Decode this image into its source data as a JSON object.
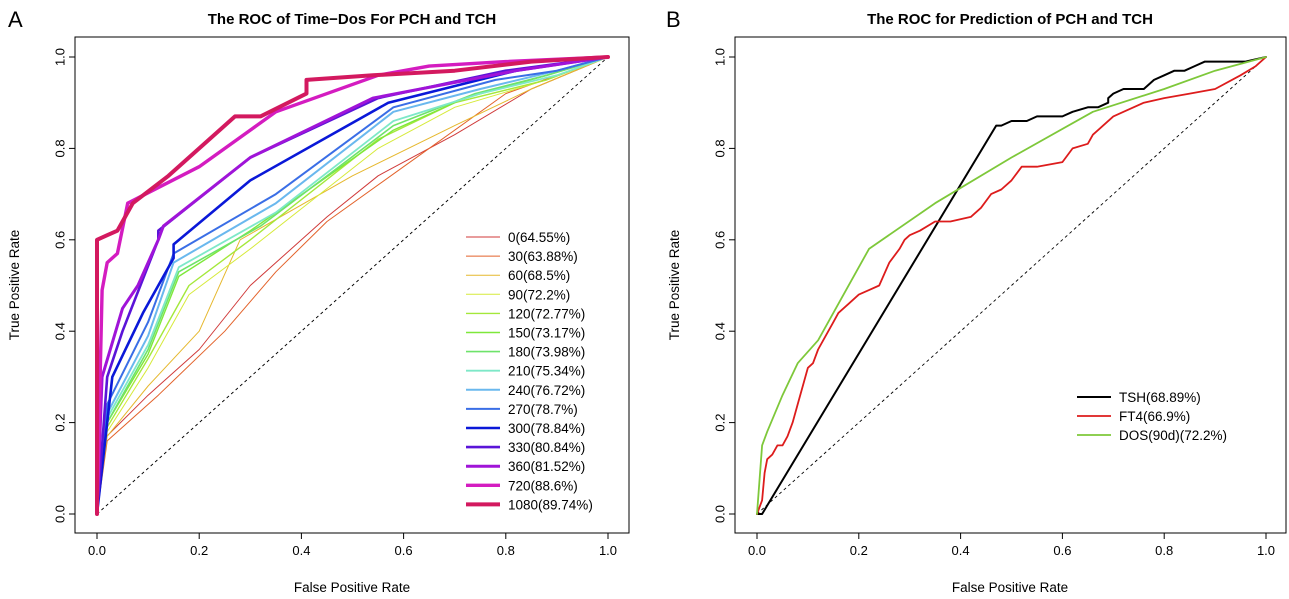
{
  "panel_labels": [
    "A",
    "B"
  ],
  "chart_data": [
    {
      "type": "line",
      "panel": "A",
      "title": "The ROC of Time−Dos For PCH and TCH",
      "xlabel": "False Positive Rate",
      "ylabel": "True Positive Rate",
      "xlim": [
        0,
        1
      ],
      "ylim": [
        0,
        1
      ],
      "xticks": [
        "0.0",
        "0.2",
        "0.4",
        "0.6",
        "0.8",
        "1.0"
      ],
      "yticks": [
        "0.0",
        "0.2",
        "0.4",
        "0.6",
        "0.8",
        "1.0"
      ],
      "grid": false,
      "legend": "center-right",
      "diagonal": true,
      "series": [
        {
          "name": "0(64.55%)",
          "color": "#d03a3a",
          "width": 1,
          "x": [
            0,
            0.01,
            0.1,
            0.2,
            0.3,
            0.45,
            0.55,
            0.7,
            0.85,
            1
          ],
          "y": [
            0,
            0.16,
            0.26,
            0.36,
            0.5,
            0.65,
            0.74,
            0.83,
            0.93,
            1
          ]
        },
        {
          "name": "30(63.88%)",
          "color": "#e3622a",
          "width": 1,
          "x": [
            0,
            0.02,
            0.12,
            0.25,
            0.35,
            0.45,
            0.6,
            0.8,
            1
          ],
          "y": [
            0,
            0.16,
            0.26,
            0.4,
            0.53,
            0.64,
            0.76,
            0.92,
            1
          ]
        },
        {
          "name": "60(68.5%)",
          "color": "#e6b82e",
          "width": 1,
          "x": [
            0,
            0.02,
            0.1,
            0.2,
            0.28,
            0.5,
            0.7,
            0.85,
            1
          ],
          "y": [
            0,
            0.17,
            0.28,
            0.4,
            0.6,
            0.74,
            0.85,
            0.93,
            1
          ]
        },
        {
          "name": "90(72.2%)",
          "color": "#d6ea3a",
          "width": 1,
          "x": [
            0,
            0.02,
            0.1,
            0.18,
            0.3,
            0.55,
            0.7,
            0.88,
            1
          ],
          "y": [
            0,
            0.18,
            0.32,
            0.48,
            0.58,
            0.8,
            0.89,
            0.95,
            1
          ]
        },
        {
          "name": "120(72.77%)",
          "color": "#a4e83a",
          "width": 1.4,
          "x": [
            0,
            0.02,
            0.1,
            0.18,
            0.3,
            0.55,
            0.7,
            0.88,
            1
          ],
          "y": [
            0,
            0.19,
            0.34,
            0.5,
            0.6,
            0.82,
            0.9,
            0.95,
            1
          ]
        },
        {
          "name": "150(73.17%)",
          "color": "#7ee83a",
          "width": 1.4,
          "x": [
            0,
            0.02,
            0.1,
            0.16,
            0.3,
            0.58,
            0.72,
            0.88,
            1
          ],
          "y": [
            0,
            0.2,
            0.35,
            0.52,
            0.62,
            0.84,
            0.91,
            0.96,
            1
          ]
        },
        {
          "name": "180(73.98%)",
          "color": "#6ee36a",
          "width": 1.6,
          "x": [
            0,
            0.02,
            0.1,
            0.16,
            0.32,
            0.58,
            0.74,
            0.88,
            1
          ],
          "y": [
            0,
            0.2,
            0.36,
            0.53,
            0.63,
            0.85,
            0.92,
            0.96,
            1
          ]
        },
        {
          "name": "210(75.34%)",
          "color": "#7ee8c8",
          "width": 1.8,
          "x": [
            0,
            0.02,
            0.1,
            0.16,
            0.35,
            0.58,
            0.75,
            0.9,
            1
          ],
          "y": [
            0,
            0.21,
            0.37,
            0.54,
            0.66,
            0.86,
            0.92,
            0.96,
            1
          ]
        },
        {
          "name": "240(76.72%)",
          "color": "#6ab8ee",
          "width": 2,
          "x": [
            0,
            0.02,
            0.1,
            0.15,
            0.35,
            0.58,
            0.75,
            0.9,
            1
          ],
          "y": [
            0,
            0.22,
            0.39,
            0.55,
            0.68,
            0.88,
            0.93,
            0.97,
            1
          ]
        },
        {
          "name": "270(78.7%)",
          "color": "#3a6ee6",
          "width": 2,
          "x": [
            0,
            0.02,
            0.1,
            0.15,
            0.35,
            0.58,
            0.78,
            0.9,
            1
          ],
          "y": [
            0,
            0.24,
            0.42,
            0.57,
            0.7,
            0.89,
            0.95,
            0.97,
            1
          ]
        },
        {
          "name": "300(78.84%)",
          "color": "#0a18d8",
          "width": 2.6,
          "x": [
            0,
            0.03,
            0.09,
            0.15,
            0.15,
            0.3,
            0.57,
            0.82,
            1
          ],
          "y": [
            0,
            0.3,
            0.44,
            0.56,
            0.59,
            0.73,
            0.9,
            0.97,
            1
          ]
        },
        {
          "name": "330(80.84%)",
          "color": "#5a14d8",
          "width": 2.6,
          "x": [
            0,
            0.02,
            0.05,
            0.12,
            0.12,
            0.3,
            0.55,
            0.8,
            1
          ],
          "y": [
            0,
            0.3,
            0.4,
            0.6,
            0.62,
            0.78,
            0.91,
            0.97,
            1
          ]
        },
        {
          "name": "360(81.52%)",
          "color": "#a014d8",
          "width": 3,
          "x": [
            0,
            0.01,
            0.05,
            0.08,
            0.12,
            0.13,
            0.3,
            0.54,
            0.82,
            1
          ],
          "y": [
            0,
            0.3,
            0.45,
            0.5,
            0.6,
            0.63,
            0.78,
            0.91,
            0.97,
            1
          ]
        },
        {
          "name": "720(88.6%)",
          "color": "#d41cc0",
          "width": 3.4,
          "x": [
            0,
            0.01,
            0.02,
            0.04,
            0.06,
            0.2,
            0.35,
            0.55,
            0.65,
            0.8,
            1
          ],
          "y": [
            0,
            0.49,
            0.55,
            0.57,
            0.68,
            0.76,
            0.88,
            0.96,
            0.98,
            0.99,
            1
          ]
        },
        {
          "name": "1080(89.74%)",
          "color": "#d3195f",
          "width": 4,
          "x": [
            0,
            0.0,
            0.02,
            0.04,
            0.07,
            0.14,
            0.27,
            0.32,
            0.41,
            0.41,
            0.54,
            0.7,
            0.85,
            1
          ],
          "y": [
            0,
            0.6,
            0.61,
            0.62,
            0.68,
            0.74,
            0.87,
            0.87,
            0.92,
            0.95,
            0.96,
            0.97,
            0.99,
            1
          ]
        }
      ]
    },
    {
      "type": "line",
      "panel": "B",
      "title": "The ROC for Prediction of PCH and TCH",
      "xlabel": "False Positive Rate",
      "ylabel": "True Positive Rate",
      "xlim": [
        0,
        1
      ],
      "ylim": [
        0,
        1
      ],
      "xticks": [
        "0.0",
        "0.2",
        "0.4",
        "0.6",
        "0.8",
        "1.0"
      ],
      "yticks": [
        "0.0",
        "0.2",
        "0.4",
        "0.6",
        "0.8",
        "1.0"
      ],
      "grid": false,
      "legend": "bottom-right",
      "diagonal": true,
      "series": [
        {
          "name": "TSH(68.89%)",
          "color": "#000000",
          "width": 2,
          "x": [
            0,
            0.01,
            0.47,
            0.48,
            0.5,
            0.51,
            0.53,
            0.55,
            0.57,
            0.6,
            0.62,
            0.65,
            0.67,
            0.69,
            0.69,
            0.7,
            0.72,
            0.76,
            0.78,
            0.8,
            0.82,
            0.84,
            0.86,
            0.88,
            0.92,
            0.96,
            1
          ],
          "y": [
            0,
            0,
            0.85,
            0.85,
            0.86,
            0.86,
            0.86,
            0.87,
            0.87,
            0.87,
            0.88,
            0.89,
            0.89,
            0.9,
            0.91,
            0.92,
            0.93,
            0.93,
            0.95,
            0.96,
            0.97,
            0.97,
            0.98,
            0.99,
            0.99,
            0.99,
            1
          ]
        },
        {
          "name": "FT4(66.9%)",
          "color": "#dd1c1c",
          "width": 1.8,
          "x": [
            0,
            0.01,
            0.015,
            0.02,
            0.03,
            0.04,
            0.05,
            0.06,
            0.07,
            0.08,
            0.09,
            0.1,
            0.11,
            0.12,
            0.13,
            0.15,
            0.16,
            0.18,
            0.2,
            0.22,
            0.24,
            0.26,
            0.28,
            0.29,
            0.3,
            0.32,
            0.35,
            0.38,
            0.42,
            0.44,
            0.46,
            0.48,
            0.5,
            0.52,
            0.55,
            0.6,
            0.62,
            0.65,
            0.66,
            0.68,
            0.7,
            0.72,
            0.76,
            0.8,
            0.85,
            0.9,
            0.95,
            0.98,
            1
          ],
          "y": [
            0,
            0.03,
            0.09,
            0.12,
            0.13,
            0.15,
            0.15,
            0.17,
            0.2,
            0.24,
            0.28,
            0.32,
            0.33,
            0.36,
            0.38,
            0.42,
            0.44,
            0.46,
            0.48,
            0.49,
            0.5,
            0.55,
            0.58,
            0.6,
            0.61,
            0.62,
            0.64,
            0.64,
            0.65,
            0.67,
            0.7,
            0.71,
            0.73,
            0.76,
            0.76,
            0.77,
            0.8,
            0.81,
            0.83,
            0.85,
            0.87,
            0.88,
            0.9,
            0.91,
            0.92,
            0.93,
            0.96,
            0.98,
            1
          ]
        },
        {
          "name": "DOS(90d)(72.2%)",
          "color": "#7ec83a",
          "width": 1.8,
          "x": [
            0,
            0.01,
            0.02,
            0.05,
            0.08,
            0.12,
            0.16,
            0.21,
            0.22,
            0.35,
            0.5,
            0.66,
            0.8,
            0.9,
            1
          ],
          "y": [
            0,
            0.15,
            0.18,
            0.26,
            0.33,
            0.38,
            0.46,
            0.56,
            0.58,
            0.68,
            0.78,
            0.88,
            0.93,
            0.97,
            1
          ]
        }
      ]
    }
  ]
}
